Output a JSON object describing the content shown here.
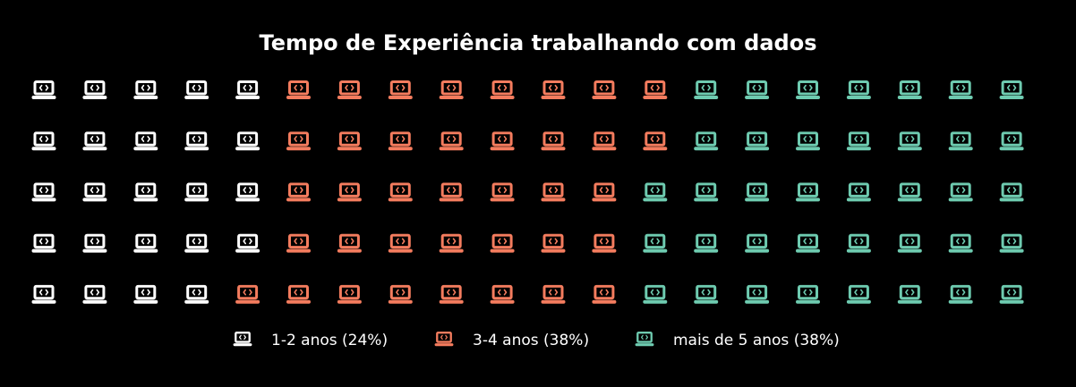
{
  "chart_data": {
    "type": "waffle",
    "title": "Tempo de Experiência trabalhando com dados",
    "rows": 5,
    "columns": 20,
    "icon": "laptop-code-icon",
    "series": [
      {
        "name": "1-2 anos (24%)",
        "value": 24,
        "color": "#ffffff"
      },
      {
        "name": "3-4 anos (38%)",
        "value": 38,
        "color": "#f47c5e"
      },
      {
        "name": "mais de 5 anos (38%)",
        "value": 38,
        "color": "#6ecbb0"
      }
    ],
    "legend_position": "bottom"
  }
}
